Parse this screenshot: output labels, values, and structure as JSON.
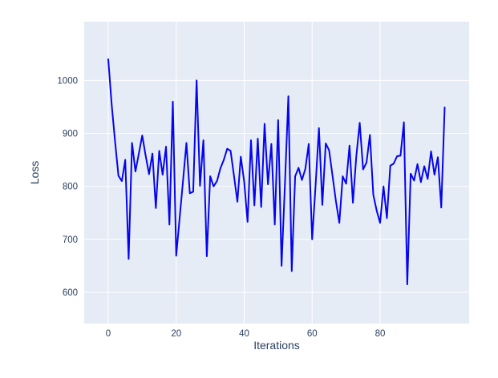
{
  "figure": {
    "background_color": "#ffffff"
  },
  "chart": {
    "plot_bg_color": "#e5ecf6",
    "grid_color": "#ffffff",
    "line_color": "#0404f0",
    "tick_label_color": "#2a3f5f",
    "axis_title_color": "#2a3f5f",
    "line_width": 2
  },
  "chart_data": {
    "type": "line",
    "title": "",
    "xlabel": "Iterations",
    "ylabel": "Loss",
    "x_ticks": [
      0,
      20,
      40,
      60,
      80
    ],
    "y_ticks": [
      600,
      700,
      800,
      900,
      1000
    ],
    "xlim": [
      -7.08,
      106.2
    ],
    "ylim": [
      541,
      1111
    ],
    "grid": true,
    "legend": false,
    "x": [
      0,
      1,
      2,
      3,
      4,
      5,
      6,
      7,
      8,
      9,
      10,
      11,
      12,
      13,
      14,
      15,
      16,
      17,
      18,
      19,
      20,
      21,
      22,
      23,
      24,
      25,
      26,
      27,
      28,
      29,
      30,
      31,
      32,
      33,
      34,
      35,
      36,
      37,
      38,
      39,
      40,
      41,
      42,
      43,
      44,
      45,
      46,
      47,
      48,
      49,
      50,
      51,
      52,
      53,
      54,
      55,
      56,
      57,
      58,
      59,
      60,
      61,
      62,
      63,
      64,
      65,
      66,
      67,
      68,
      69,
      70,
      71,
      72,
      73,
      74,
      75,
      76,
      77,
      78,
      79,
      80,
      81,
      82,
      83,
      84,
      85,
      86,
      87,
      88,
      89,
      90,
      91,
      92,
      93,
      94,
      95,
      96,
      97,
      98,
      99
    ],
    "y": [
      1040,
      955,
      885,
      820,
      810,
      850,
      663,
      882,
      828,
      862,
      896,
      858,
      823,
      862,
      759,
      867,
      822,
      875,
      728,
      960,
      669,
      740,
      810,
      882,
      787,
      790,
      1000,
      801,
      887,
      668,
      819,
      800,
      810,
      834,
      850,
      871,
      867,
      820,
      771,
      856,
      809,
      733,
      887,
      764,
      890,
      761,
      918,
      804,
      880,
      728,
      925,
      650,
      805,
      970,
      640,
      819,
      835,
      812,
      833,
      880,
      700,
      800,
      910,
      765,
      881,
      868,
      820,
      772,
      731,
      819,
      805,
      877,
      769,
      857,
      920,
      832,
      845,
      897,
      784,
      754,
      731,
      800,
      740,
      839,
      843,
      857,
      858,
      921,
      615,
      824,
      811,
      842,
      808,
      838,
      814,
      866,
      822,
      855,
      760,
      949
    ]
  }
}
